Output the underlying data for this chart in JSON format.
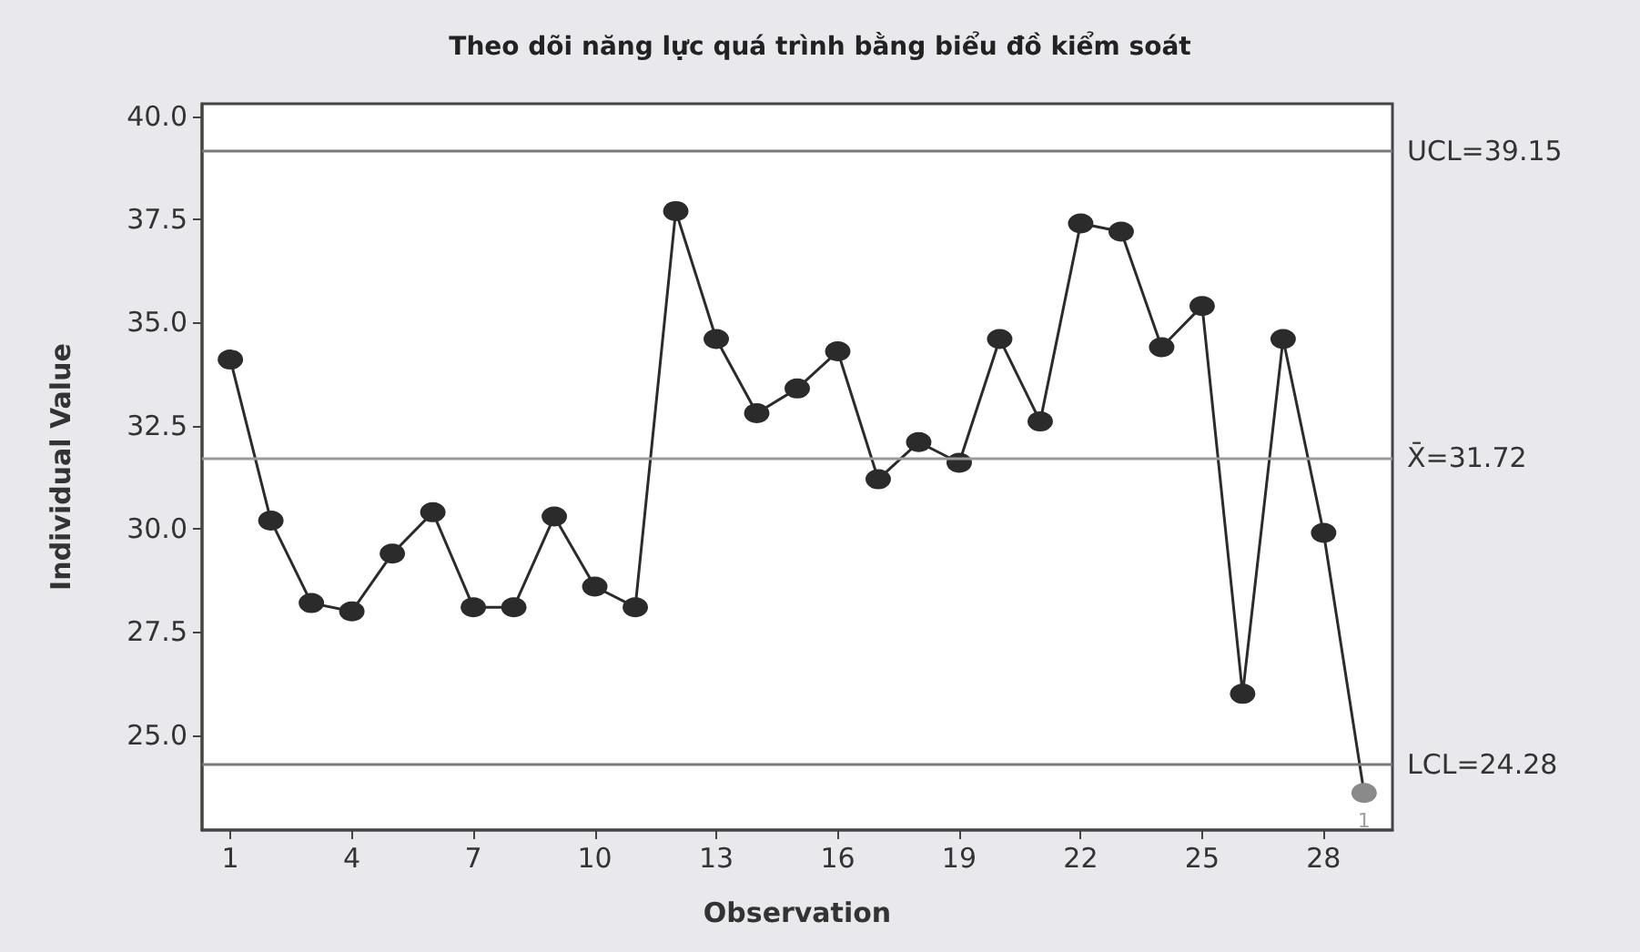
{
  "chart_data": {
    "type": "line",
    "title": "Theo dõi năng lực quá trình bằng biểu đồ kiểm soát",
    "xlabel": "Observation",
    "ylabel": "Individual Value",
    "x": [
      1,
      2,
      3,
      4,
      5,
      6,
      7,
      8,
      9,
      10,
      11,
      12,
      13,
      14,
      15,
      16,
      17,
      18,
      19,
      20,
      21,
      22,
      23,
      24,
      25,
      26,
      27,
      28,
      29
    ],
    "series": [
      {
        "color": "#2b2b2b",
        "values": [
          34.1,
          30.2,
          28.2,
          28.0,
          29.4,
          30.4,
          28.1,
          28.1,
          30.3,
          28.6,
          28.1,
          37.7,
          34.6,
          32.8,
          33.4,
          34.3,
          31.2,
          32.1,
          31.6,
          34.6,
          32.6,
          37.4,
          37.2,
          34.4,
          35.4,
          26.0,
          34.6,
          29.9,
          23.6
        ],
        "colors": [
          "#2b2b2b",
          "#2b2b2b",
          "#2b2b2b",
          "#2b2b2b",
          "#2b2b2b",
          "#2b2b2b",
          "#2b2b2b",
          "#2b2b2b",
          "#2b2b2b",
          "#2b2b2b",
          "#2b2b2b",
          "#2b2b2b",
          "#2b2b2b",
          "#2b2b2b",
          "#2b2b2b",
          "#2b2b2b",
          "#2b2b2b",
          "#2b2b2b",
          "#2b2b2b",
          "#2b2b2b",
          "#2b2b2b",
          "#2b2b2b",
          "#2b2b2b",
          "#2b2b2b",
          "#2b2b2b",
          "#2b2b2b",
          "#2b2b2b",
          "#2b2b2b",
          "#8a8a8a"
        ]
      }
    ],
    "xlim": [
      0.3,
      29.7
    ],
    "xticks": [
      1,
      4,
      7,
      10,
      13,
      16,
      19,
      22,
      25,
      28
    ],
    "ylim": [
      22.7,
      40.3
    ],
    "yticks": [
      {
        "value": 25,
        "label": "25.0"
      },
      {
        "value": 27.5,
        "label": "27.5"
      },
      {
        "value": 30,
        "label": "30.0"
      },
      {
        "value": 32.5,
        "label": "32.5"
      },
      {
        "value": 35,
        "label": "35.0"
      },
      {
        "value": 37.5,
        "label": "37.5"
      },
      {
        "value": 40,
        "label": "40.0"
      }
    ],
    "ref_lines": [
      {
        "axis": "y",
        "value": 39.15,
        "label": "UCL=39.15",
        "color": "#7a7a7a"
      },
      {
        "axis": "y",
        "value": 31.72,
        "label": "X̄=31.72",
        "color": "#9a9a9a"
      },
      {
        "axis": "y",
        "value": 24.28,
        "label": "LCL=24.28",
        "color": "#7a7a7a"
      }
    ],
    "annotations": [
      {
        "text": "1",
        "x": 29,
        "y": 23.6
      }
    ],
    "marker": "circle",
    "line_style": "solid"
  }
}
